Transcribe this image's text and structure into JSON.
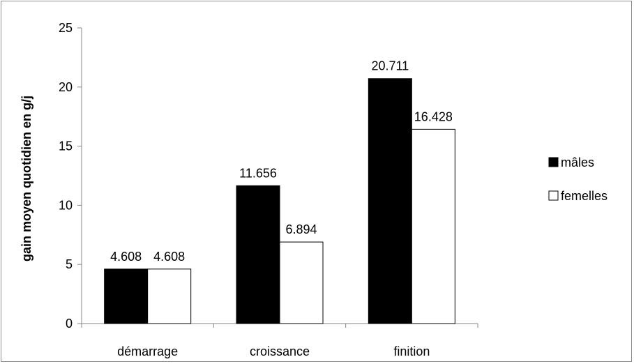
{
  "chart_data": {
    "type": "bar",
    "categories": [
      "démarrage",
      "croissance",
      "finition"
    ],
    "series": [
      {
        "name": "mâles",
        "values": [
          4.608,
          11.656,
          20.711
        ],
        "color": "#000000"
      },
      {
        "name": "femelles",
        "values": [
          4.608,
          6.894,
          16.428
        ],
        "color": "#ffffff"
      }
    ],
    "data_labels": [
      [
        "4.608",
        "11.656",
        "20.711"
      ],
      [
        "4.608",
        "6.894",
        "16.428"
      ]
    ],
    "ylabel": "gain moyen quotidien en g/j",
    "xlabel": "",
    "ylim": [
      0,
      25
    ],
    "yticks": [
      0,
      5,
      10,
      15,
      20,
      25
    ],
    "grid": false,
    "legend_position": "right"
  }
}
